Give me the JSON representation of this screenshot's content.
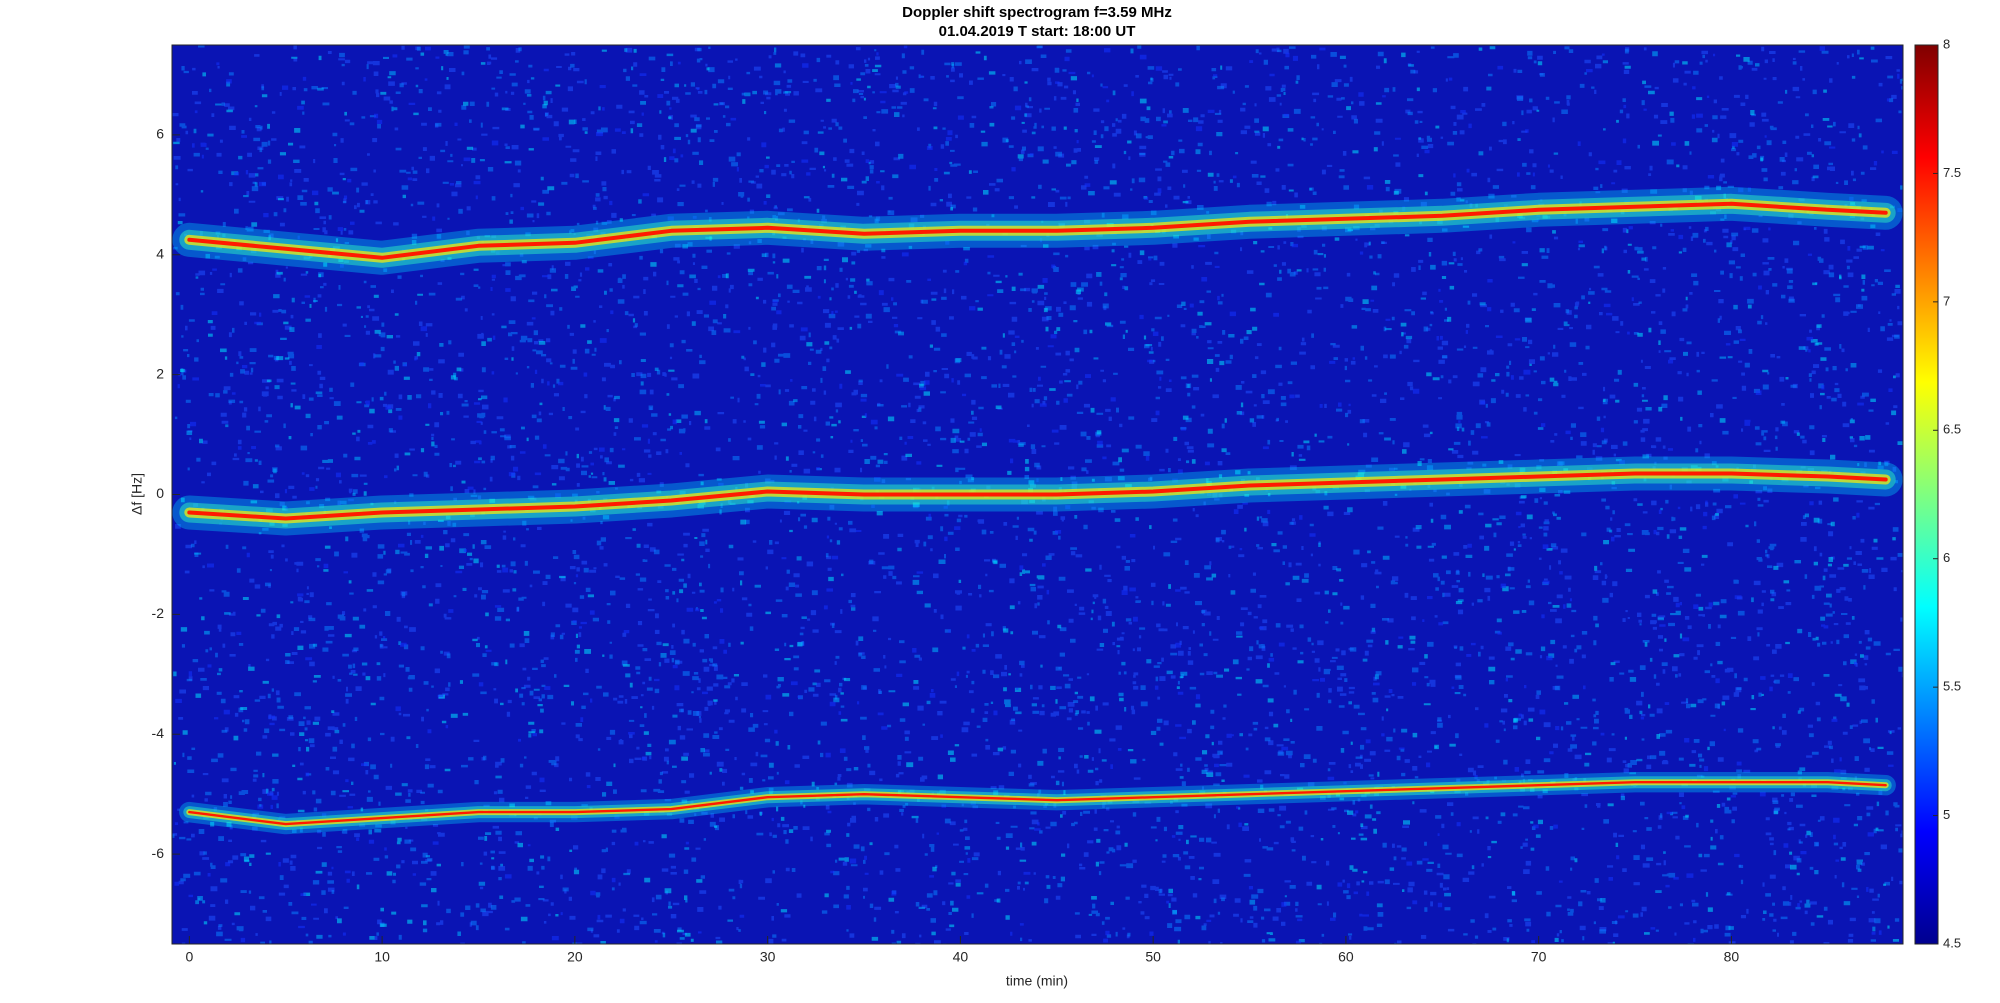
{
  "chart_data": {
    "type": "spectrogram",
    "title": "Doppler shift spectrogram f=3.59 MHz",
    "subtitle": "01.04.2019    T start: 18:00 UT",
    "x_label": "time (min)",
    "y_label": "Δf [Hz]",
    "xlim": [
      -0.9,
      88.9
    ],
    "xticks": [
      0,
      10,
      20,
      30,
      40,
      50,
      60,
      70,
      80
    ],
    "ylim": [
      -7.5,
      7.5
    ],
    "yticks": [
      -6,
      -4,
      -2,
      0,
      2,
      4,
      6
    ],
    "clim": [
      4.5,
      8
    ],
    "cticks": [
      4.5,
      5,
      5.5,
      6,
      6.5,
      7,
      7.5,
      8
    ],
    "colormap": "jet",
    "x": [
      0,
      5,
      10,
      15,
      20,
      25,
      30,
      35,
      40,
      45,
      50,
      55,
      60,
      65,
      70,
      75,
      80,
      85,
      88
    ],
    "bands": [
      {
        "values": [
          4.25,
          4.1,
          3.95,
          4.15,
          4.2,
          4.4,
          4.45,
          4.35,
          4.4,
          4.4,
          4.45,
          4.55,
          4.6,
          4.65,
          4.75,
          4.8,
          4.85,
          4.75,
          4.7
        ]
      },
      {
        "values": [
          -0.3,
          -0.4,
          -0.3,
          -0.25,
          -0.2,
          -0.1,
          0.05,
          0.0,
          0.0,
          0.0,
          0.05,
          0.15,
          0.2,
          0.25,
          0.3,
          0.35,
          0.35,
          0.3,
          0.25
        ]
      },
      {
        "values": [
          -5.3,
          -5.5,
          -5.4,
          -5.3,
          -5.3,
          -5.25,
          -5.05,
          -5.0,
          -5.05,
          -5.1,
          -5.05,
          -5.0,
          -4.95,
          -4.9,
          -4.85,
          -4.8,
          -4.8,
          -4.8,
          -4.85
        ]
      }
    ]
  }
}
